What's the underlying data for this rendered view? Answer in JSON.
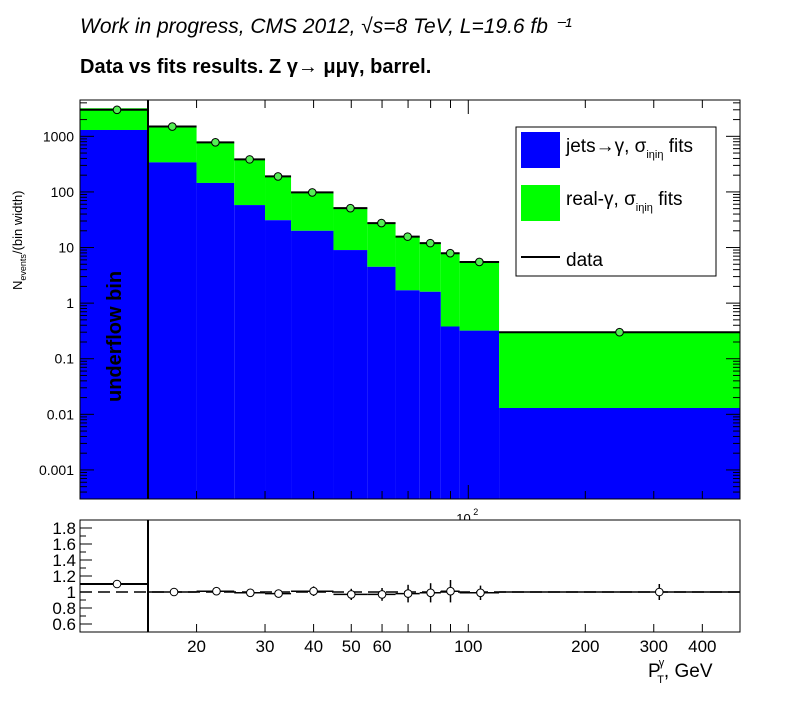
{
  "header": {
    "title": "Work in progress, CMS 2012,   √s=8 TeV, L=19.6 fb ⁻¹",
    "subtitle": "Data vs fits results.     Z  γ→  μμγ, barrel."
  },
  "chart_data": [
    {
      "type": "bar",
      "stacked": true,
      "log_y": true,
      "ylim": [
        0.0003,
        4500
      ],
      "ylabel_main": "N",
      "ylabel_sub": "events",
      "ylabel_tail": "/(bin width)",
      "y_ticks": [
        {
          "v": 1000,
          "label": "1000"
        },
        {
          "v": 100,
          "label": "100"
        },
        {
          "v": 10,
          "label": "10"
        },
        {
          "v": 1,
          "label": "1"
        },
        {
          "v": 0.1,
          "label": "0.1"
        },
        {
          "v": 0.01,
          "label": "0.01"
        },
        {
          "v": 0.001,
          "label": "0.001"
        }
      ],
      "x_tick_label": "10",
      "x_tick_exp": "2",
      "underflow_label": "underflow bin",
      "underflow_bin": {
        "jets": 1300,
        "real": 1900,
        "data": 3000
      },
      "bins": [
        {
          "lo": 15,
          "hi": 20,
          "jets": 340,
          "real": 1160,
          "data": 1500
        },
        {
          "lo": 20,
          "hi": 25,
          "jets": 145,
          "real": 635,
          "data": 780
        },
        {
          "lo": 25,
          "hi": 30,
          "jets": 58,
          "real": 327,
          "data": 385
        },
        {
          "lo": 30,
          "hi": 35,
          "jets": 31,
          "real": 159,
          "data": 190
        },
        {
          "lo": 35,
          "hi": 45,
          "jets": 20,
          "real": 78,
          "data": 98
        },
        {
          "lo": 45,
          "hi": 55,
          "jets": 9,
          "real": 42,
          "data": 51
        },
        {
          "lo": 55,
          "hi": 65,
          "jets": 4.5,
          "real": 23,
          "data": 27.5
        },
        {
          "lo": 65,
          "hi": 75,
          "jets": 1.7,
          "real": 14,
          "data": 15.7
        },
        {
          "lo": 75,
          "hi": 85,
          "jets": 1.6,
          "real": 10.4,
          "data": 12
        },
        {
          "lo": 85,
          "hi": 95,
          "jets": 0.38,
          "real": 7.5,
          "data": 7.9
        },
        {
          "lo": 95,
          "hi": 120,
          "jets": 0.32,
          "real": 5.2,
          "data": 5.5
        },
        {
          "lo": 120,
          "hi": 500,
          "jets": 0.013,
          "real": 0.29,
          "data": 0.3
        }
      ],
      "legend": [
        {
          "key": "jets",
          "label": "jets→γ, σ",
          "sub": "iηiη",
          "tail": " fits",
          "color": "#0000ff"
        },
        {
          "key": "real",
          "label": "real-γ, σ",
          "sub": "iηiη",
          "tail": " fits",
          "color": "#00ff00"
        },
        {
          "key": "data",
          "label": "data",
          "color": "#000000"
        }
      ],
      "legend_position": "top-right"
    },
    {
      "type": "scatter",
      "ylim": [
        0.5,
        1.9
      ],
      "y_ticks": [
        "0.6",
        "0.8",
        "1",
        "1.2",
        "1.4",
        "1.6",
        "1.8"
      ],
      "reference_line": 1,
      "underflow_ratio": 1.1,
      "points": [
        {
          "x": 17.5,
          "y": 1.0,
          "err": 0.02
        },
        {
          "x": 22.5,
          "y": 1.01,
          "err": 0.03
        },
        {
          "x": 27.5,
          "y": 0.99,
          "err": 0.04
        },
        {
          "x": 32.5,
          "y": 0.98,
          "err": 0.05
        },
        {
          "x": 40,
          "y": 1.01,
          "err": 0.06
        },
        {
          "x": 50,
          "y": 0.97,
          "err": 0.07
        },
        {
          "x": 60,
          "y": 0.97,
          "err": 0.08
        },
        {
          "x": 70,
          "y": 0.98,
          "err": 0.11
        },
        {
          "x": 80,
          "y": 0.99,
          "err": 0.12
        },
        {
          "x": 90,
          "y": 1.01,
          "err": 0.14
        },
        {
          "x": 107.5,
          "y": 0.99,
          "err": 0.09
        },
        {
          "x": 310,
          "y": 1.0,
          "err": 0.1
        }
      ],
      "x_ticks": [
        {
          "v": 20,
          "label": "20"
        },
        {
          "v": 30,
          "label": "30"
        },
        {
          "v": 40,
          "label": "40"
        },
        {
          "v": 50,
          "label": "50"
        },
        {
          "v": 60,
          "label": "60"
        },
        {
          "v": 100,
          "label": "100"
        },
        {
          "v": 200,
          "label": "200"
        },
        {
          "v": 300,
          "label": "300"
        },
        {
          "v": 400,
          "label": "400"
        }
      ],
      "xlabel_main": "P",
      "xlabel_sup": "γ",
      "xlabel_sub": "T",
      "xlabel_tail": ", GeV"
    }
  ]
}
